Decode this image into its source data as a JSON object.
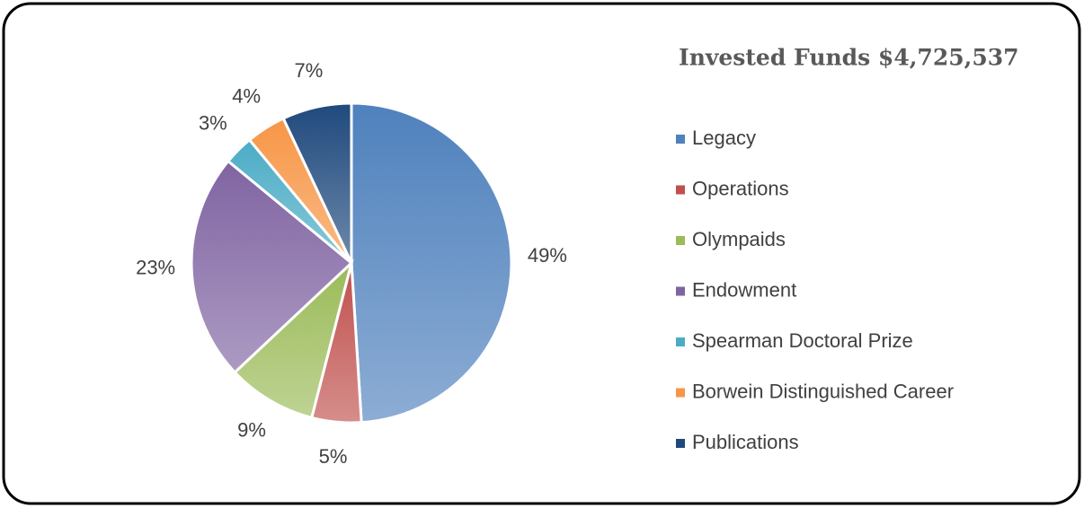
{
  "chart_data": {
    "type": "pie",
    "title": "Invested Funds $4,725,537",
    "categories": [
      "Legacy",
      "Operations",
      "Olympaids",
      "Endowment",
      "Spearman Doctoral Prize",
      "Borwein Distinguished Career",
      "Publications"
    ],
    "values": [
      49,
      5,
      9,
      23,
      3,
      4,
      7
    ],
    "value_labels": [
      "49%",
      "5%",
      "9%",
      "23%",
      "3%",
      "4%",
      "7%"
    ],
    "colors": [
      "#4f81bd",
      "#c0504d",
      "#9bbb59",
      "#8064a2",
      "#4bacc6",
      "#f79646",
      "#1f497d"
    ],
    "legend": "right"
  }
}
